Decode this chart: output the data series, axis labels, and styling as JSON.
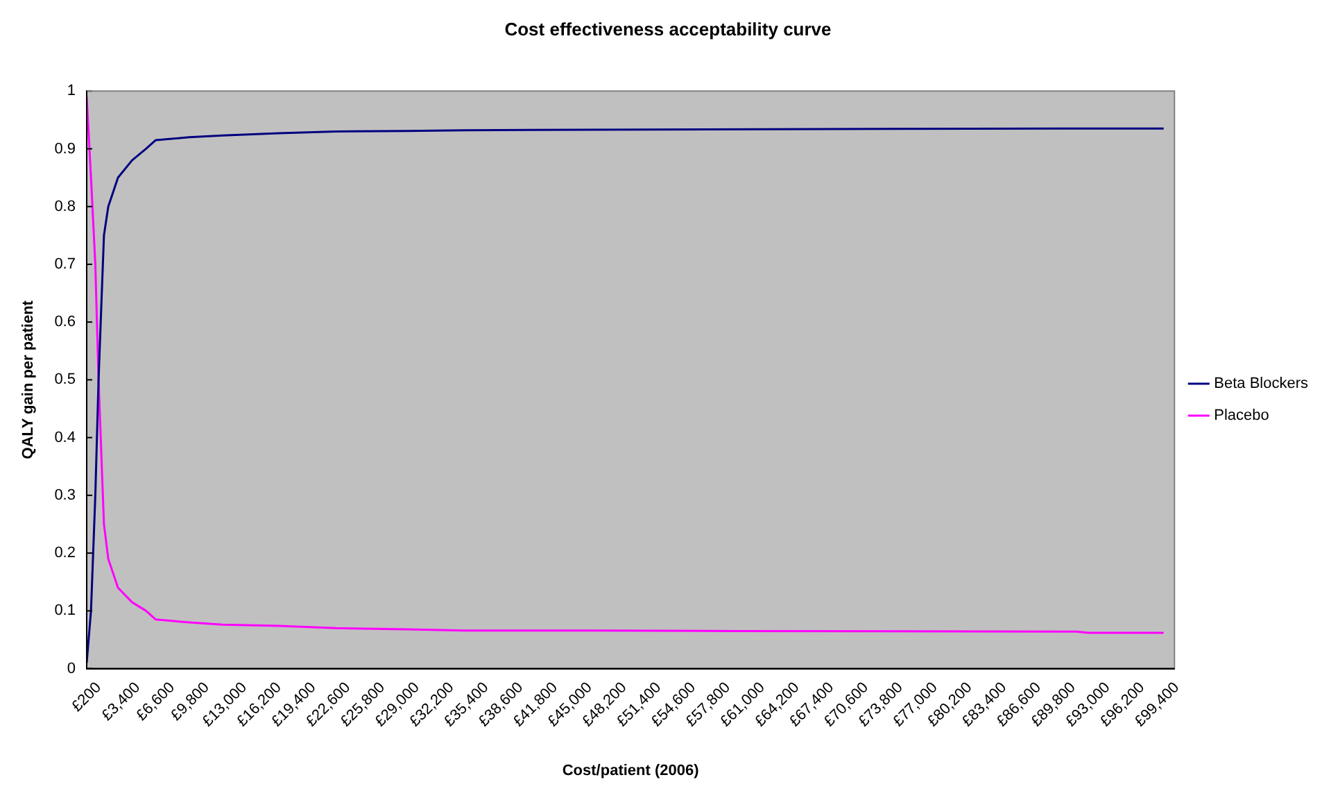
{
  "chart_data": {
    "type": "line",
    "title": "Cost effectiveness acceptability curve",
    "xlabel": "Cost/patient (2006)",
    "ylabel": "QALY gain per patient",
    "xlim": [
      200,
      101000
    ],
    "ylim": [
      0,
      1
    ],
    "xticks": [
      {
        "value": 200,
        "label": "£200"
      },
      {
        "value": 3400,
        "label": "£3,400"
      },
      {
        "value": 6600,
        "label": "£6,600"
      },
      {
        "value": 9800,
        "label": "£9,800"
      },
      {
        "value": 13000,
        "label": "£13,000"
      },
      {
        "value": 16200,
        "label": "£16,200"
      },
      {
        "value": 19400,
        "label": "£19,400"
      },
      {
        "value": 22600,
        "label": "£22,600"
      },
      {
        "value": 25800,
        "label": "£25,800"
      },
      {
        "value": 29000,
        "label": "£29,000"
      },
      {
        "value": 32200,
        "label": "£32,200"
      },
      {
        "value": 35400,
        "label": "£35,400"
      },
      {
        "value": 38600,
        "label": "£38,600"
      },
      {
        "value": 41800,
        "label": "£41,800"
      },
      {
        "value": 45000,
        "label": "£45,000"
      },
      {
        "value": 48200,
        "label": "£48,200"
      },
      {
        "value": 51400,
        "label": "£51,400"
      },
      {
        "value": 54600,
        "label": "£54,600"
      },
      {
        "value": 57800,
        "label": "£57,800"
      },
      {
        "value": 61000,
        "label": "£61,000"
      },
      {
        "value": 64200,
        "label": "£64,200"
      },
      {
        "value": 67400,
        "label": "£67,400"
      },
      {
        "value": 70600,
        "label": "£70,600"
      },
      {
        "value": 73800,
        "label": "£73,800"
      },
      {
        "value": 77000,
        "label": "£77,000"
      },
      {
        "value": 80200,
        "label": "£80,200"
      },
      {
        "value": 83400,
        "label": "£83,400"
      },
      {
        "value": 86600,
        "label": "£86,600"
      },
      {
        "value": 89800,
        "label": "£89,800"
      },
      {
        "value": 93000,
        "label": "£93,000"
      },
      {
        "value": 96200,
        "label": "£96,200"
      },
      {
        "value": 99400,
        "label": "£99,400"
      }
    ],
    "yticks": [
      0,
      0.1,
      0.2,
      0.3,
      0.4,
      0.5,
      0.6,
      0.7,
      0.8,
      0.9,
      1
    ],
    "grid": false,
    "legend": "right",
    "marker": "none",
    "line_style": "solid",
    "series": [
      {
        "name": "Beta Blockers",
        "color": "#000080",
        "x": [
          200,
          600,
          1000,
          1300,
          1800,
          2200,
          3100,
          4400,
          5700,
          6600,
          9700,
          12800,
          18000,
          23300,
          29900,
          35200,
          46400,
          62900,
          91900,
          100000
        ],
        "values": [
          0.01,
          0.1,
          0.3,
          0.5,
          0.75,
          0.8,
          0.85,
          0.88,
          0.9,
          0.915,
          0.92,
          0.923,
          0.927,
          0.93,
          0.931,
          0.932,
          0.933,
          0.934,
          0.935,
          0.935
        ]
      },
      {
        "name": "Placebo",
        "color": "#ff00ff",
        "x": [
          200,
          600,
          1000,
          1300,
          1800,
          2200,
          3100,
          4400,
          5700,
          6600,
          9700,
          12800,
          18000,
          23300,
          29900,
          35200,
          47100,
          60300,
          91900,
          93000,
          100000
        ],
        "values": [
          0.99,
          0.85,
          0.7,
          0.5,
          0.25,
          0.19,
          0.14,
          0.115,
          0.1,
          0.085,
          0.08,
          0.076,
          0.074,
          0.07,
          0.068,
          0.066,
          0.066,
          0.065,
          0.064,
          0.062,
          0.062
        ]
      }
    ]
  }
}
